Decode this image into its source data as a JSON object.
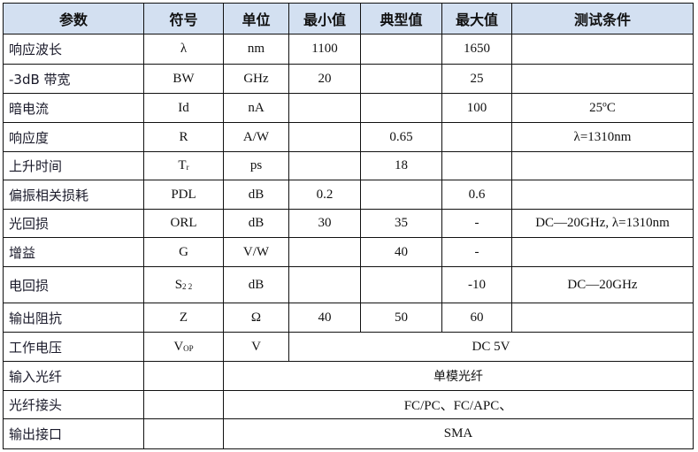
{
  "headers": [
    "参数",
    "符号",
    "单位",
    "最小值",
    "典型值",
    "最大值",
    "测试条件"
  ],
  "rows": [
    {
      "param": "响应波长",
      "symbol": "λ",
      "symbol_sub": "",
      "unit": "nm",
      "min": "1100",
      "typ": "",
      "max": "1650",
      "cond": ""
    },
    {
      "param": "-3dB 带宽",
      "symbol": "BW",
      "symbol_sub": "",
      "unit": "GHz",
      "min": "20",
      "typ": "",
      "max": "25",
      "cond": ""
    },
    {
      "param": "暗电流",
      "symbol": "Id",
      "symbol_sub": "",
      "unit": "nA",
      "min": "",
      "typ": "",
      "max": "100",
      "cond": "25ºC"
    },
    {
      "param": "响应度",
      "symbol": "R",
      "symbol_sub": "",
      "unit": "A/W",
      "min": "",
      "typ": "0.65",
      "max": "",
      "cond": "λ=1310nm"
    },
    {
      "param": "上升时间",
      "symbol": "T",
      "symbol_sub": "r",
      "unit": "ps",
      "min": "",
      "typ": "18",
      "max": "",
      "cond": ""
    },
    {
      "param": "偏振相关损耗",
      "symbol": "PDL",
      "symbol_sub": "",
      "unit": "dB",
      "min": "0.2",
      "typ": "",
      "max": "0.6",
      "cond": ""
    },
    {
      "param": "光回损",
      "symbol": "ORL",
      "symbol_sub": "",
      "unit": "dB",
      "min": "30",
      "typ": "35",
      "max": "-",
      "cond": "DC—20GHz, λ=1310nm"
    },
    {
      "param": "增益",
      "symbol": "G",
      "symbol_sub": "",
      "unit": "V/W",
      "min": "",
      "typ": "40",
      "max": "-",
      "cond": ""
    },
    {
      "param": "电回损",
      "symbol": "S",
      "symbol_sub": "2 2",
      "unit": "dB",
      "min": "",
      "typ": "",
      "max": "-10",
      "cond": "DC—20GHz"
    },
    {
      "param": "输出阻抗",
      "symbol": "Z",
      "symbol_sub": "",
      "unit": "Ω",
      "min": "40",
      "typ": "50",
      "max": "60",
      "cond": ""
    }
  ],
  "voltage": {
    "param": "工作电压",
    "symbol": "V",
    "symbol_sub": "OP",
    "unit": "V",
    "value": "DC 5V"
  },
  "merged_rows": [
    {
      "param": "输入光纤",
      "value": "单模光纤"
    },
    {
      "param": "光纤接头",
      "value": "FC/PC、FC/APC、"
    },
    {
      "param": "输出接口",
      "value": "SMA"
    }
  ]
}
